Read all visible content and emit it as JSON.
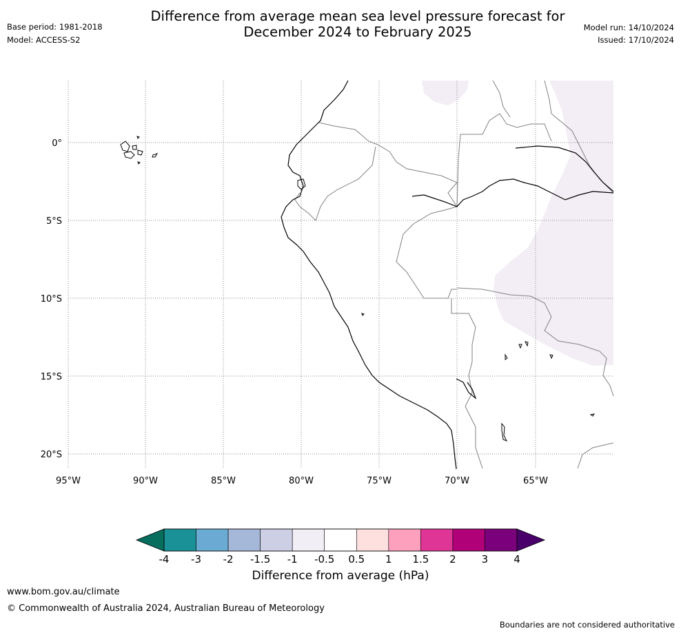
{
  "header": {
    "title_line1": "Difference from average mean sea level pressure forecast for",
    "title_line2": "December 2024 to February 2025",
    "base_period": "Base period: 1981-2018",
    "model": "Model: ACCESS-S2",
    "model_run": "Model run: 14/10/2024",
    "issued": "Issued: 17/10/2024"
  },
  "map": {
    "latitude_labels": [
      "0°",
      "5°S",
      "10°S",
      "15°S",
      "20°S"
    ],
    "longitude_labels": [
      "95°W",
      "90°W",
      "85°W",
      "80°W",
      "75°W",
      "70°W",
      "65°W"
    ],
    "shaded_region_color": "#f3eef5",
    "coastline_color": "#000000",
    "border_color": "#808080",
    "gridline_style": "dotted"
  },
  "colorbar": {
    "tick_labels": [
      "-4",
      "-3",
      "-2",
      "-1.5",
      "-1",
      "-0.5",
      "0.5",
      "1",
      "1.5",
      "2",
      "3",
      "4"
    ],
    "colors": [
      "#1a9196",
      "#6aaad3",
      "#a6b8da",
      "#cdd0e5",
      "#f2eef6",
      "#ffffff",
      "#fee0df",
      "#fca0be",
      "#de3597",
      "#b00178",
      "#7b007b"
    ],
    "low_extend_color": "#076e5e",
    "high_extend_color": "#49006a",
    "label": "Difference from average (hPa)"
  },
  "footer": {
    "website": "www.bom.gov.au/climate",
    "copyright": "© Commonwealth of Australia 2024, Australian Bureau of Meteorology",
    "disclaimer": "Boundaries are not considered authoritative"
  }
}
